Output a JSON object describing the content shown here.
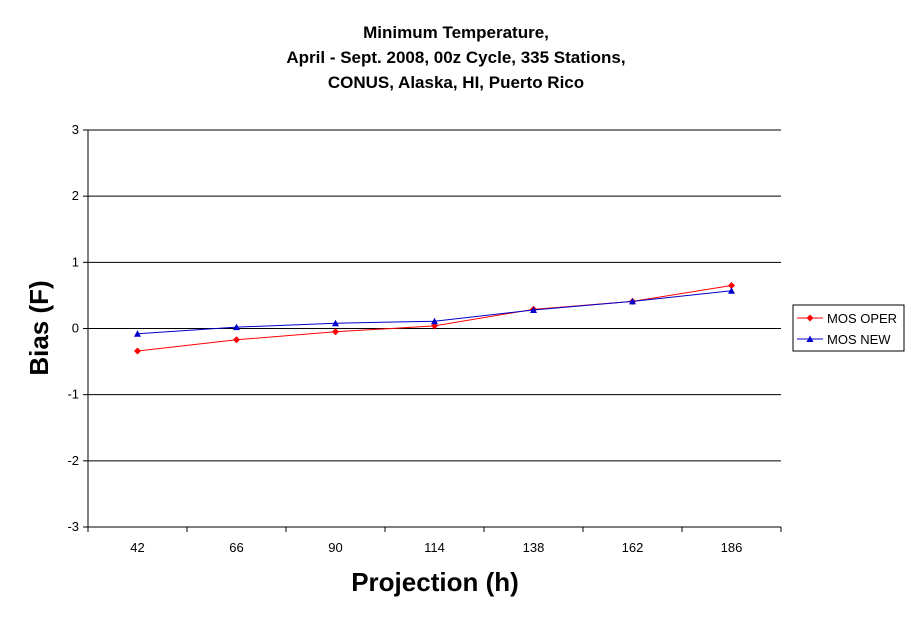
{
  "chart_data": {
    "type": "line",
    "title_lines": [
      "Minimum Temperature,",
      "April - Sept. 2008, 00z Cycle, 335 Stations,",
      "CONUS, Alaska, HI, Puerto Rico"
    ],
    "xlabel": "Projection (h)",
    "ylabel": "Bias (F)",
    "categories": [
      "42",
      "66",
      "90",
      "114",
      "138",
      "162",
      "186"
    ],
    "ylim": [
      -3,
      3
    ],
    "yticks": [
      "-3",
      "-2",
      "-1",
      "0",
      "1",
      "2",
      "3"
    ],
    "grid": true,
    "legend_position": "right",
    "series": [
      {
        "name": "MOS OPER",
        "color": "#ff0000",
        "marker": "diamond",
        "values": [
          -0.34,
          -0.17,
          -0.05,
          0.04,
          0.29,
          0.41,
          0.65
        ]
      },
      {
        "name": "MOS NEW",
        "color": "#0000cc",
        "marker": "triangle",
        "values": [
          -0.08,
          0.02,
          0.08,
          0.11,
          0.28,
          0.41,
          0.57
        ]
      }
    ]
  }
}
